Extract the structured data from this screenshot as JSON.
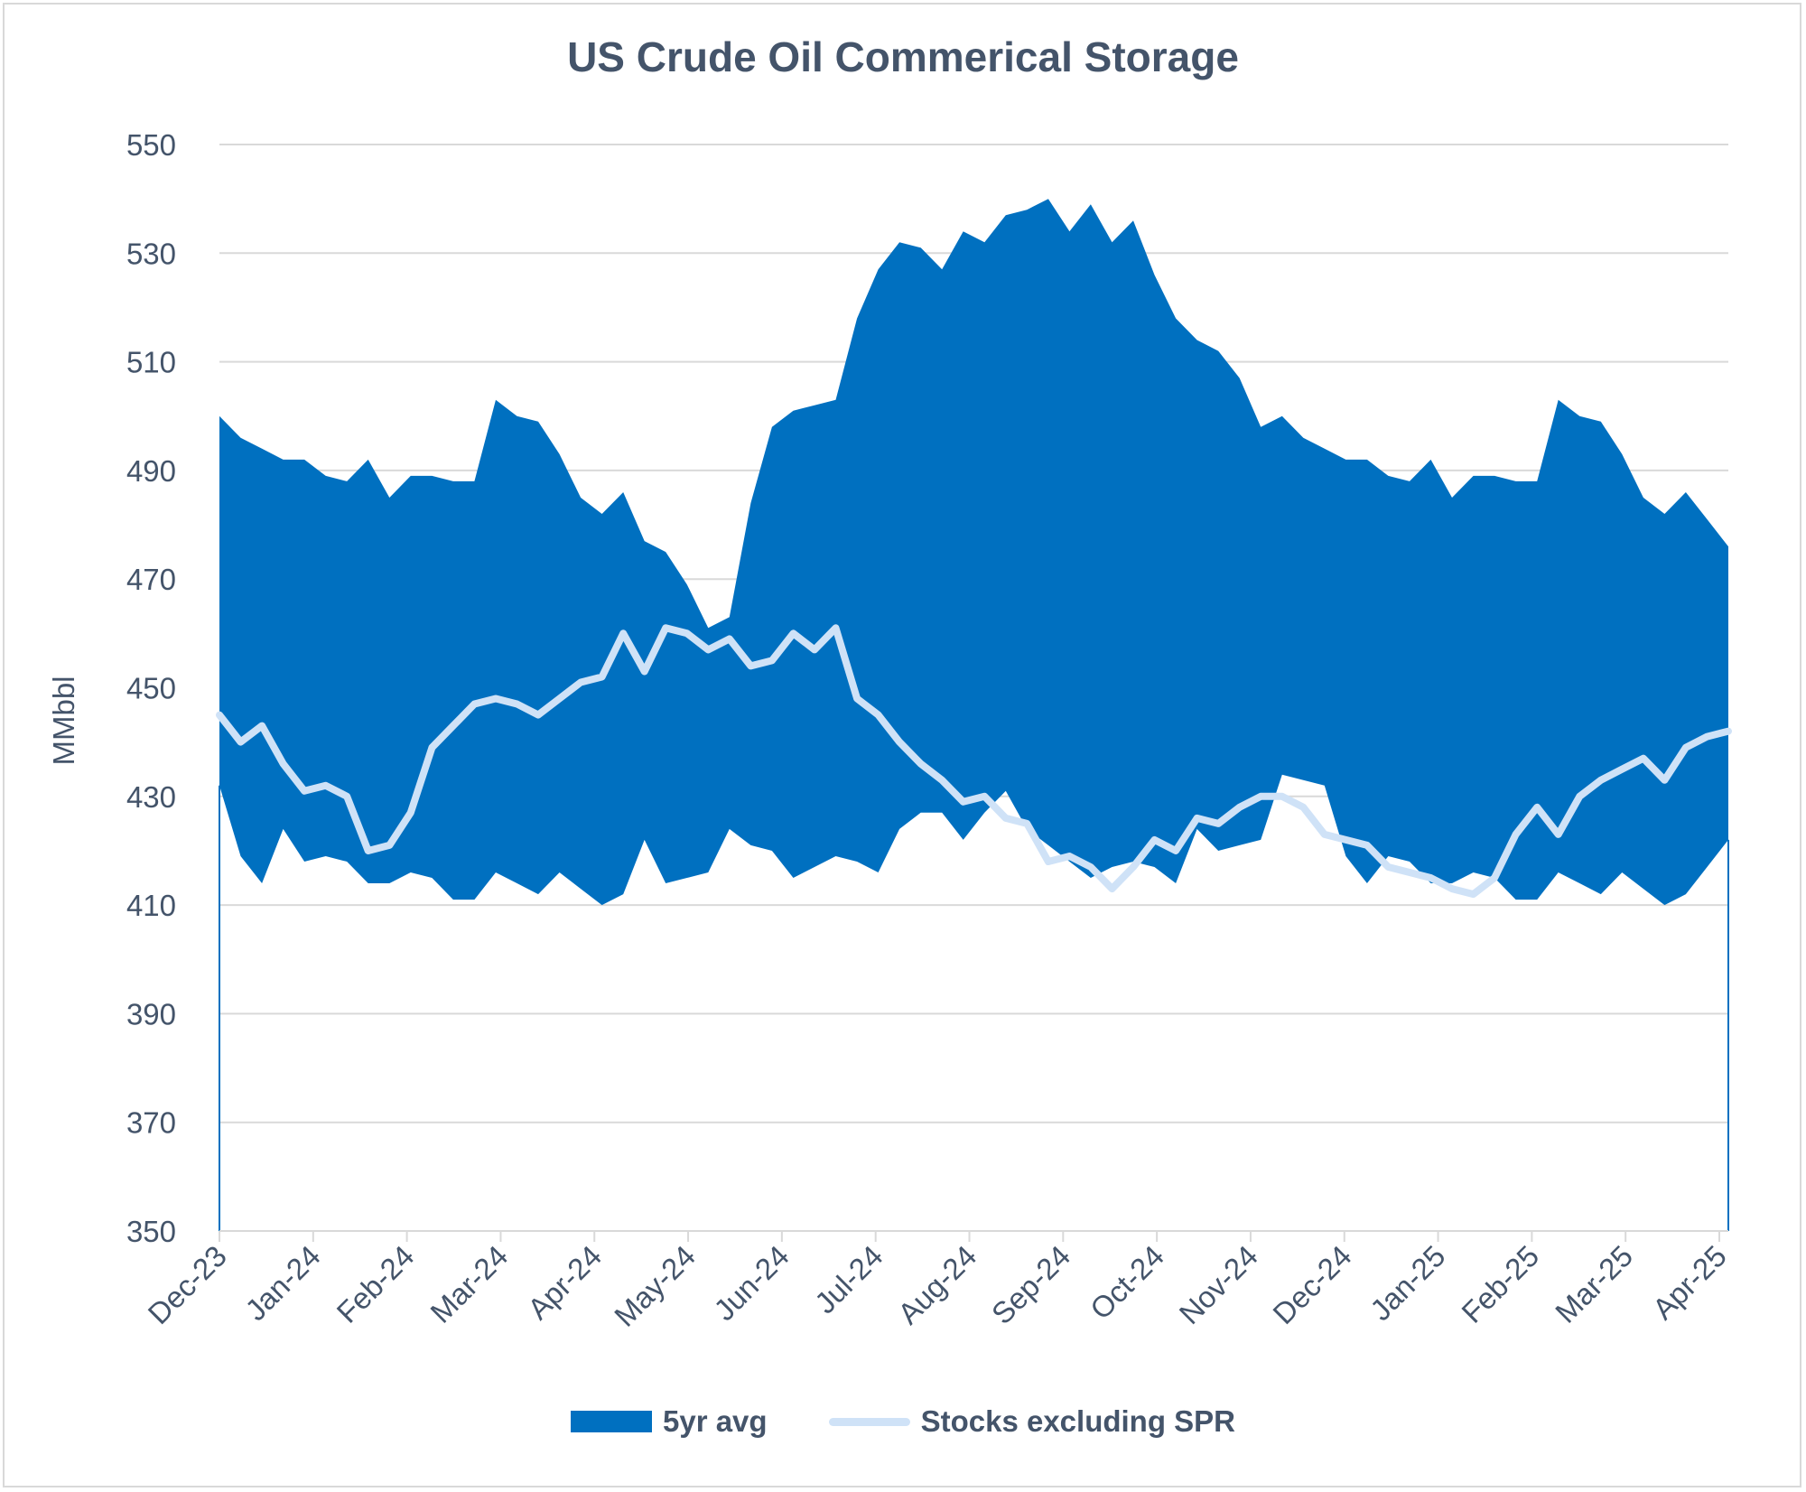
{
  "chart_data": {
    "type": "area",
    "title": "US Crude Oil Commerical Storage",
    "ylabel": "MMbbl",
    "xlabel": "",
    "ylim": [
      350,
      550
    ],
    "yticks": [
      350,
      370,
      390,
      410,
      430,
      450,
      470,
      490,
      510,
      530,
      550
    ],
    "x_tick_labels": [
      "Dec-23",
      "Jan-24",
      "Feb-24",
      "Mar-24",
      "Apr-24",
      "May-24",
      "Jun-24",
      "Jul-24",
      "Aug-24",
      "Sep-24",
      "Oct-24",
      "Nov-24",
      "Dec-24",
      "Jan-25",
      "Feb-25",
      "Mar-25",
      "Apr-25"
    ],
    "grid": true,
    "legend_position": "bottom",
    "colors": {
      "band": "#0070c0",
      "stocks": "#cfe2f7",
      "text": "#44546a",
      "grid": "#d9d9d9"
    },
    "series": [
      {
        "name": "5yr avg",
        "kind": "range-band",
        "upper": [
          500,
          496,
          494,
          492,
          492,
          489,
          488,
          492,
          485,
          489,
          489,
          488,
          488,
          503,
          500,
          499,
          493,
          485,
          482,
          486,
          477,
          475,
          469,
          461,
          463,
          484,
          498,
          501,
          502,
          503,
          518,
          527,
          532,
          531,
          527,
          534,
          532,
          537,
          538,
          540,
          534,
          539,
          532,
          536,
          526,
          518,
          514,
          512,
          507,
          498,
          500,
          496,
          494,
          492,
          492,
          489,
          488,
          492,
          485,
          489,
          489,
          488,
          488,
          503,
          500,
          499,
          493,
          485,
          482,
          486,
          481,
          476
        ],
        "lower": [
          432,
          419,
          414,
          424,
          418,
          419,
          418,
          414,
          414,
          416,
          415,
          411,
          411,
          416,
          414,
          412,
          416,
          413,
          410,
          412,
          422,
          414,
          415,
          416,
          424,
          421,
          420,
          415,
          417,
          419,
          418,
          416,
          424,
          427,
          427,
          422,
          427,
          431,
          424,
          421,
          418,
          415,
          417,
          418,
          417,
          414,
          424,
          420,
          421,
          422,
          434,
          433,
          432,
          419,
          414,
          419,
          418,
          414,
          414,
          416,
          415,
          411,
          411,
          416,
          414,
          412,
          416,
          413,
          410,
          412,
          417,
          422
        ]
      },
      {
        "name": "Stocks excluding SPR",
        "kind": "line",
        "values": [
          445,
          440,
          443,
          436,
          431,
          432,
          430,
          420,
          421,
          427,
          439,
          443,
          447,
          448,
          447,
          445,
          448,
          451,
          452,
          460,
          453,
          461,
          460,
          457,
          459,
          454,
          455,
          460,
          457,
          461,
          448,
          445,
          440,
          436,
          433,
          429,
          430,
          426,
          425,
          418,
          419,
          417,
          413,
          417,
          422,
          420,
          426,
          425,
          428,
          430,
          430,
          428,
          423,
          422,
          421,
          417,
          416,
          415,
          413,
          412,
          415,
          423,
          428,
          423,
          430,
          433,
          435,
          437,
          433,
          439,
          441,
          442
        ]
      }
    ]
  }
}
